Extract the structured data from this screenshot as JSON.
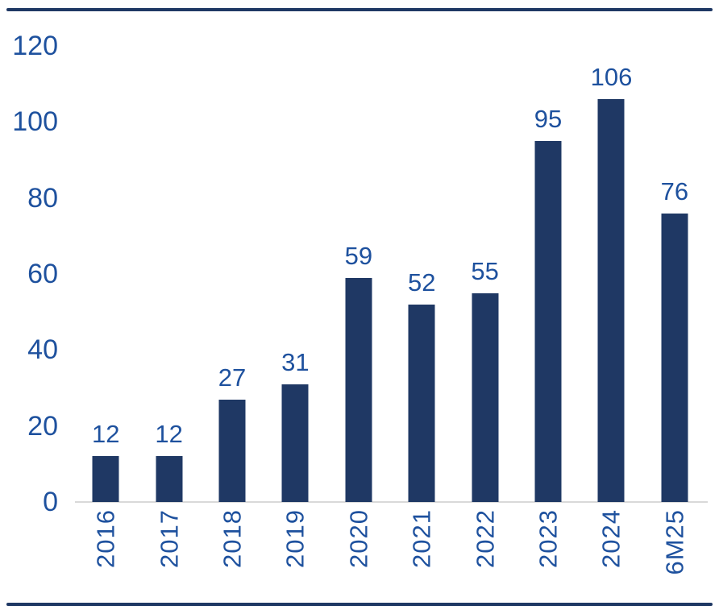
{
  "chart_data": {
    "type": "bar",
    "title": "",
    "xlabel": "",
    "ylabel": "",
    "categories": [
      "2016",
      "2017",
      "2018",
      "2019",
      "2020",
      "2021",
      "2022",
      "2023",
      "2024",
      "6M25"
    ],
    "values": [
      12,
      12,
      27,
      31,
      59,
      52,
      55,
      95,
      106,
      76
    ],
    "ylim": [
      0,
      120
    ],
    "yticks": [
      "0",
      "20",
      "40",
      "60",
      "80",
      "100",
      "120"
    ],
    "ytick_values": [
      0,
      20,
      40,
      60,
      80,
      100,
      120
    ],
    "grid": false,
    "legend": false,
    "data_labels": true,
    "x_label_rotation_deg": 90,
    "colors": {
      "bar": "#1F3864",
      "label_text": "#1E519E",
      "axis_line": "#D9D9D9",
      "border_rule": "#1F3864",
      "background": "#FFFFFF"
    }
  }
}
